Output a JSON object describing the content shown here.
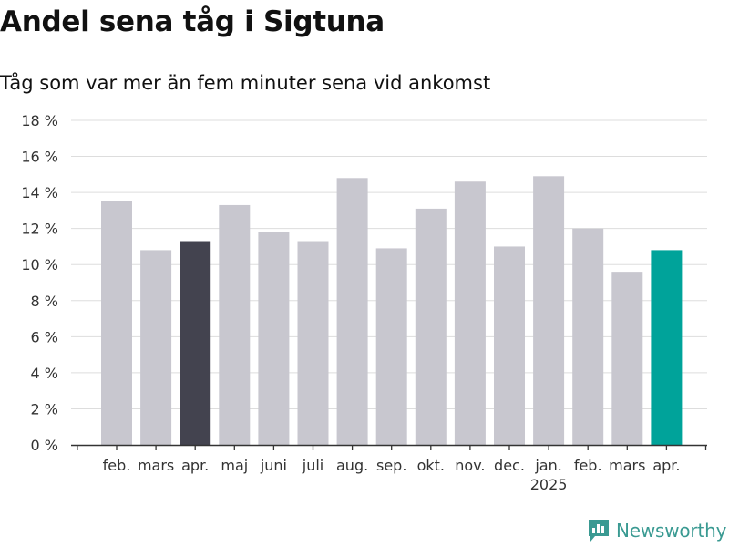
{
  "header": {
    "title": "Andel sena tåg i Sigtuna",
    "subtitle": "Tåg som var mer än fem minuter sena vid ankomst"
  },
  "brand": {
    "name": "Newsworthy",
    "icon": "bar-chart-logo-icon",
    "color": "#3a9a92"
  },
  "colors": {
    "default_bar": "#c8c7cf",
    "highlight_prev_year": "#43434f",
    "highlight_current": "#00a39a",
    "gridline": "#dddddd",
    "axis": "#333333"
  },
  "chart_data": {
    "type": "bar",
    "title": "Andel sena tåg i Sigtuna",
    "subtitle": "Tåg som var mer än fem minuter sena vid ankomst",
    "categories": [
      "feb.",
      "mars",
      "apr.",
      "maj",
      "juni",
      "juli",
      "aug.",
      "sep.",
      "okt.",
      "nov.",
      "dec.",
      "jan.",
      "feb.",
      "mars",
      "apr."
    ],
    "year_labels": [
      {
        "index": 11,
        "label": "2025"
      }
    ],
    "values": [
      13.5,
      10.8,
      11.3,
      13.3,
      11.8,
      11.3,
      14.8,
      10.9,
      13.1,
      14.6,
      11.0,
      14.9,
      12.0,
      9.6,
      10.8
    ],
    "highlight": {
      "2": "highlight_prev_year",
      "14": "highlight_current"
    },
    "ylim": [
      0,
      18
    ],
    "yticks": [
      0,
      2,
      4,
      6,
      8,
      10,
      12,
      14,
      16,
      18
    ],
    "ytick_labels": [
      "0 %",
      "2 %",
      "4 %",
      "6 %",
      "8 %",
      "10 %",
      "12 %",
      "14 %",
      "16 %",
      "18 %"
    ],
    "xlabel": "",
    "ylabel": "",
    "grid": true,
    "legend": "none"
  }
}
